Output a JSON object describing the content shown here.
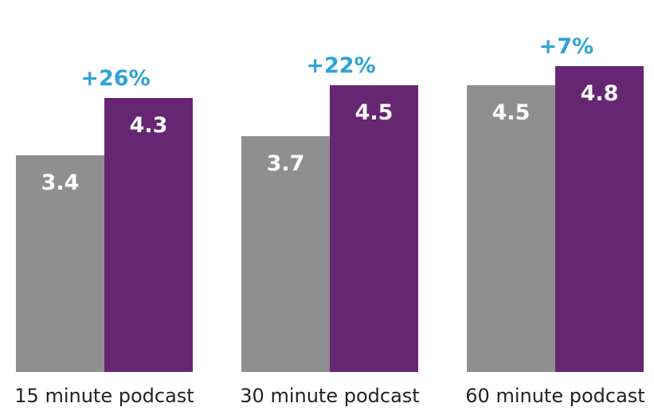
{
  "chart_data": {
    "type": "bar",
    "categories": [
      "15 minute podcast",
      "30 minute podcast",
      "60 minute podcast"
    ],
    "series": [
      {
        "values": [
          3.4,
          3.7,
          4.5
        ],
        "color": "#8f8f8f"
      },
      {
        "values": [
          4.3,
          4.5,
          4.8
        ],
        "color": "#662672"
      }
    ],
    "value_labels": [
      [
        "3.4",
        "3.7",
        "4.5"
      ],
      [
        "4.3",
        "4.5",
        "4.8"
      ]
    ],
    "change_labels": [
      "+26%",
      "+22%",
      "+7%"
    ],
    "change_label_color": "#2ea3d7",
    "ylim": [
      0,
      5
    ],
    "grid": false,
    "legend": "none"
  }
}
